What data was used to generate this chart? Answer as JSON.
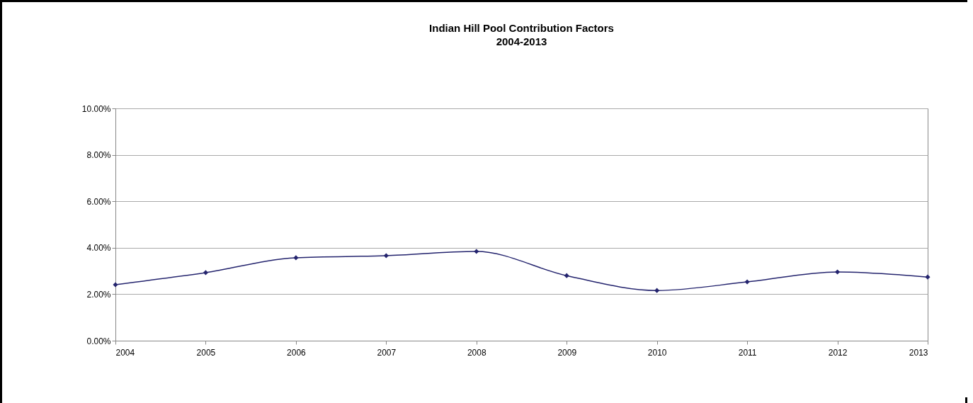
{
  "chart_data": {
    "type": "line",
    "title": "Indian Hill Pool Contribution Factors",
    "subtitle": "2004-2013",
    "x": [
      2004,
      2005,
      2006,
      2007,
      2008,
      2009,
      2010,
      2011,
      2012,
      2013
    ],
    "series": [
      {
        "color": "#24246e",
        "values": [
          2.41,
          2.93,
          3.57,
          3.66,
          3.84,
          2.8,
          2.16,
          2.53,
          2.96,
          2.74
        ]
      }
    ],
    "xlim": [
      2004,
      2013
    ],
    "xticks": [
      2004,
      2005,
      2006,
      2007,
      2008,
      2009,
      2010,
      2011,
      2012,
      2013
    ],
    "ylim": [
      0,
      10
    ],
    "yticks": [
      {
        "value": 0,
        "label": "0.00%"
      },
      {
        "value": 2,
        "label": "2.00%"
      },
      {
        "value": 4,
        "label": "4.00%"
      },
      {
        "value": 6,
        "label": "6.00%"
      },
      {
        "value": 8,
        "label": "8.00%"
      },
      {
        "value": 10,
        "label": "10.00%"
      }
    ],
    "grid": "y",
    "marker": "diamond",
    "line_style": "solid"
  }
}
